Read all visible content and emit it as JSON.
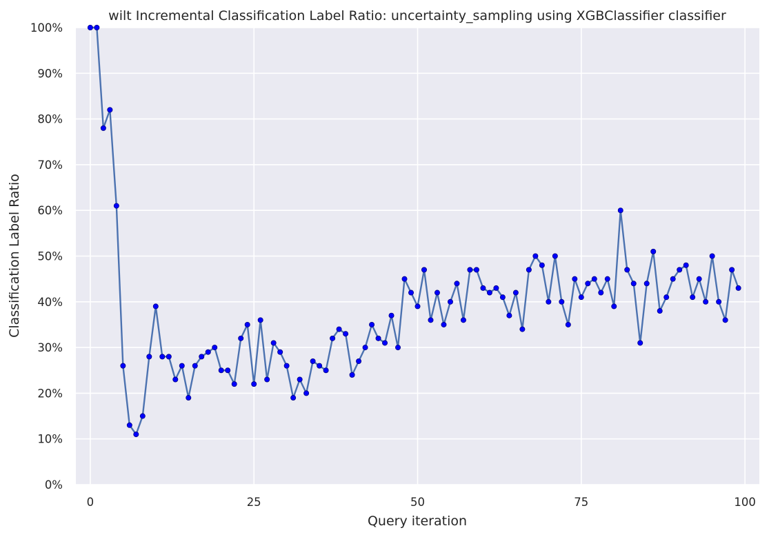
{
  "chart_data": {
    "type": "line",
    "title": "wilt Incremental Classification Label Ratio: uncertainty_sampling using XGBClassifier classifier",
    "xlabel": "Query iteration",
    "ylabel": "Classification Label Ratio",
    "xlim": [
      -2.2,
      102.2
    ],
    "ylim": [
      0,
      1
    ],
    "xticks": [
      0,
      25,
      50,
      75,
      100
    ],
    "xtick_labels": [
      "0",
      "25",
      "50",
      "75",
      "100"
    ],
    "yticks": [
      0,
      0.1,
      0.2,
      0.3,
      0.4,
      0.5,
      0.6,
      0.7,
      0.8,
      0.9,
      1.0
    ],
    "ytick_labels": [
      "0%",
      "10%",
      "20%",
      "30%",
      "40%",
      "50%",
      "60%",
      "70%",
      "80%",
      "90%",
      "100%"
    ],
    "grid": true,
    "colors": {
      "background": "#eaeaf2",
      "grid": "#ffffff",
      "line": "#4c72b0",
      "marker": "#0000ff"
    },
    "series": [
      {
        "x": [
          0,
          1,
          2,
          3,
          4,
          5,
          6,
          7,
          8,
          9,
          10,
          11,
          12,
          13,
          14,
          15,
          16,
          17,
          18,
          19,
          20,
          21,
          22,
          23,
          24,
          25,
          26,
          27,
          28,
          29,
          30,
          31,
          32,
          33,
          34,
          35,
          36,
          37,
          38,
          39,
          40,
          41,
          42,
          43,
          44,
          45,
          46,
          47,
          48,
          49,
          50,
          51,
          52,
          53,
          54,
          55,
          56,
          57,
          58,
          59,
          60,
          61,
          62,
          63,
          64,
          65,
          66,
          67,
          68,
          69,
          70,
          71,
          72,
          73,
          74,
          75,
          76,
          77,
          78,
          79,
          80,
          81,
          82,
          83,
          84,
          85,
          86,
          87,
          88,
          89,
          90,
          91,
          92,
          93,
          94,
          95,
          96,
          97,
          98,
          99
        ],
        "values": [
          1.0,
          1.0,
          0.78,
          0.82,
          0.61,
          0.26,
          0.13,
          0.11,
          0.15,
          0.28,
          0.39,
          0.28,
          0.28,
          0.23,
          0.26,
          0.19,
          0.26,
          0.28,
          0.29,
          0.3,
          0.25,
          0.25,
          0.22,
          0.32,
          0.35,
          0.22,
          0.36,
          0.23,
          0.31,
          0.29,
          0.26,
          0.19,
          0.23,
          0.2,
          0.27,
          0.26,
          0.25,
          0.32,
          0.34,
          0.33,
          0.24,
          0.27,
          0.3,
          0.35,
          0.32,
          0.31,
          0.37,
          0.3,
          0.45,
          0.42,
          0.39,
          0.47,
          0.36,
          0.42,
          0.35,
          0.4,
          0.44,
          0.36,
          0.47,
          0.47,
          0.43,
          0.42,
          0.43,
          0.41,
          0.37,
          0.42,
          0.34,
          0.47,
          0.5,
          0.48,
          0.4,
          0.5,
          0.4,
          0.35,
          0.45,
          0.41,
          0.44,
          0.45,
          0.42,
          0.45,
          0.39,
          0.6,
          0.47,
          0.44,
          0.31,
          0.44,
          0.51,
          0.38,
          0.41,
          0.45,
          0.47,
          0.48,
          0.41,
          0.45,
          0.4,
          0.5,
          0.4,
          0.36,
          0.47,
          0.43
        ]
      }
    ]
  }
}
